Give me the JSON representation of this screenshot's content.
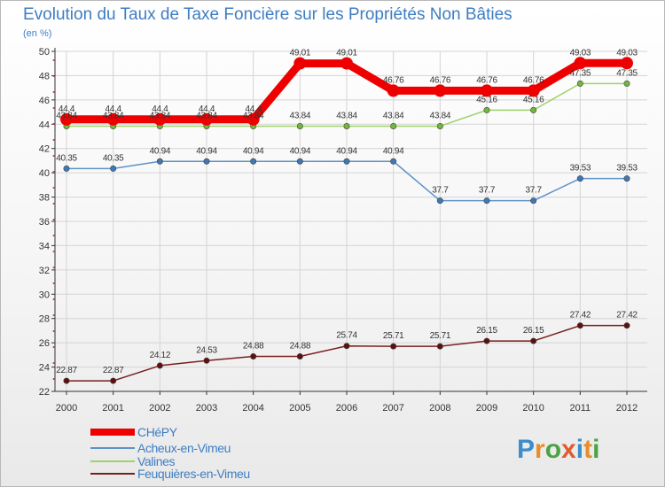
{
  "chart_data": {
    "type": "line",
    "title": "Evolution du Taux de Taxe Foncière sur les Propriétés Non Bâties",
    "subtitle": "(en %)",
    "x": [
      "2000",
      "2001",
      "2002",
      "2003",
      "2004",
      "2005",
      "2006",
      "2007",
      "2008",
      "2009",
      "2010",
      "2011",
      "2012"
    ],
    "ylim": [
      22,
      50
    ],
    "yticks": [
      22,
      24,
      26,
      28,
      30,
      32,
      34,
      36,
      38,
      40,
      42,
      44,
      46,
      48,
      50
    ],
    "grid": true,
    "series": [
      {
        "name": "Feuquières-en-Vimeu",
        "color": "#7a1e1e",
        "marker": "#5e1010",
        "width": 1.5,
        "values": [
          22.87,
          22.87,
          24.12,
          24.53,
          24.88,
          24.88,
          25.74,
          25.71,
          25.71,
          26.15,
          26.15,
          27.42,
          27.42
        ],
        "labels": [
          "22.87",
          "22.87",
          "24.12",
          "24.53",
          "24.88",
          "24.88",
          "25.74",
          "25.71",
          "25.71",
          "26.15",
          "26.15",
          "27.42",
          "27.42"
        ]
      },
      {
        "name": "Acheux-en-Vimeu",
        "color": "#5f93c6",
        "marker": "#3f78b5",
        "width": 1.5,
        "values": [
          40.35,
          40.35,
          40.94,
          40.94,
          40.94,
          40.94,
          40.94,
          40.94,
          37.7,
          37.7,
          37.7,
          39.53,
          39.53
        ],
        "labels": [
          "40.35",
          "40.35",
          "40.94",
          "40.94",
          "40.94",
          "40.94",
          "40.94",
          "40.94",
          "37.7",
          "37.7",
          "37.7",
          "39.53",
          "39.53"
        ]
      },
      {
        "name": "Valines",
        "color": "#9ed36a",
        "marker": "#6fb83a",
        "width": 1.5,
        "values": [
          43.84,
          43.84,
          43.84,
          43.84,
          43.84,
          43.84,
          43.84,
          43.84,
          43.84,
          45.16,
          45.16,
          47.35,
          47.35
        ],
        "labels": [
          "43.84",
          "43.84",
          "43.84",
          "43.84",
          "43.84",
          "43.84",
          "43.84",
          "43.84",
          "43.84",
          "45.16",
          "45.16",
          "47.35",
          "47.35"
        ]
      },
      {
        "name": "CHéPY",
        "color": "#ee0000",
        "marker": "#ee0000",
        "width": 9,
        "values": [
          44.4,
          44.4,
          44.4,
          44.4,
          44.4,
          49.01,
          49.01,
          46.76,
          46.76,
          46.76,
          46.76,
          49.03,
          49.03
        ],
        "labels": [
          "44.4",
          "44.4",
          "44.4",
          "44.4",
          "44.4",
          "49.01",
          "49.01",
          "46.76",
          "46.76",
          "46.76",
          "46.76",
          "49.03",
          "49.03"
        ]
      }
    ],
    "legend": [
      "CHéPY",
      "Acheux-en-Vimeu",
      "Valines",
      "Feuquières-en-Vimeu"
    ]
  },
  "brand": {
    "letters": [
      "P",
      "r",
      "o",
      "x",
      "i",
      "t",
      "i"
    ],
    "colors": [
      "#3c8dc9",
      "#e88d2a",
      "#4aa345",
      "#e25b2f",
      "#3c8dc9",
      "#e88d2a",
      "#4aa345"
    ]
  }
}
